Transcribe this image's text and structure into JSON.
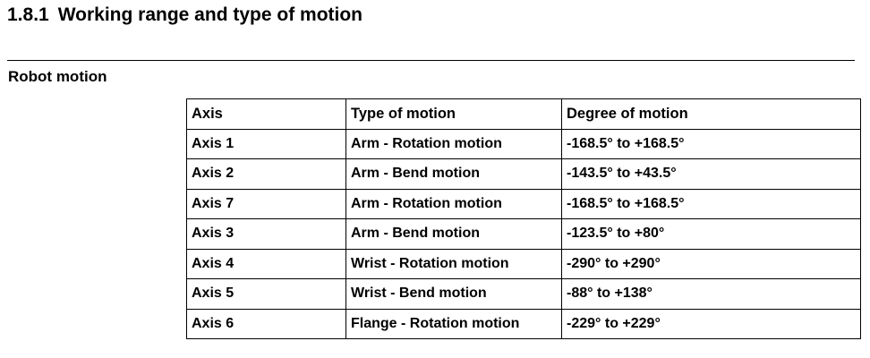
{
  "section": {
    "number": "1.8.1",
    "title": "Working range and type of motion"
  },
  "subsection": {
    "title": "Robot motion"
  },
  "table": {
    "headers": [
      "Axis",
      "Type of motion",
      "Degree of motion"
    ],
    "rows": [
      [
        "Axis 1",
        "Arm - Rotation motion",
        "-168.5° to +168.5°"
      ],
      [
        "Axis 2",
        "Arm - Bend motion",
        "-143.5° to +43.5°"
      ],
      [
        "Axis 7",
        "Arm - Rotation motion",
        "-168.5° to +168.5°"
      ],
      [
        "Axis 3",
        "Arm - Bend motion",
        "-123.5° to +80°"
      ],
      [
        "Axis 4",
        "Wrist - Rotation motion",
        "-290° to +290°"
      ],
      [
        "Axis 5",
        "Wrist - Bend motion",
        "-88° to +138°"
      ],
      [
        "Axis 6",
        "Flange - Rotation motion",
        "-229° to +229°"
      ]
    ]
  }
}
